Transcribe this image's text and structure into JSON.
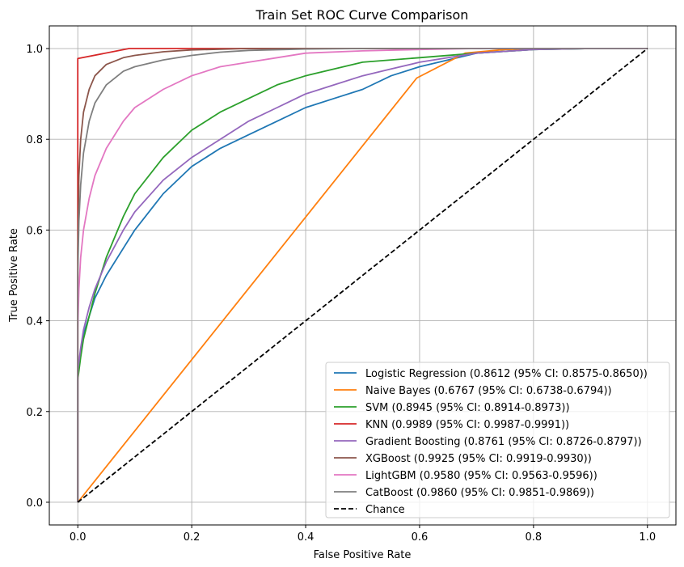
{
  "chart_data": {
    "type": "line",
    "title": "Train Set ROC Curve Comparison",
    "xlabel": "False Positive Rate",
    "ylabel": "True Positive Rate",
    "xlim": [
      -0.05,
      1.05
    ],
    "ylim": [
      -0.05,
      1.05
    ],
    "xticks": [
      0.0,
      0.2,
      0.4,
      0.6,
      0.8,
      1.0
    ],
    "yticks": [
      0.0,
      0.2,
      0.4,
      0.6,
      0.8,
      1.0
    ],
    "xtick_labels": [
      "0.0",
      "0.2",
      "0.4",
      "0.6",
      "0.8",
      "1.0"
    ],
    "ytick_labels": [
      "0.0",
      "0.2",
      "0.4",
      "0.6",
      "0.8",
      "1.0"
    ],
    "grid": true,
    "legend_position": "lower-right",
    "series": [
      {
        "name": "Logistic Regression (0.8612 (95% CI: 0.8575-0.8650))",
        "color": "#1f77b4",
        "style": "solid",
        "x": [
          0,
          0,
          0.005,
          0.01,
          0.02,
          0.03,
          0.05,
          0.08,
          0.1,
          0.15,
          0.2,
          0.25,
          0.3,
          0.35,
          0.4,
          0.45,
          0.5,
          0.55,
          0.6,
          0.65,
          0.7,
          0.8,
          0.9,
          1.0
        ],
        "y": [
          0,
          0.28,
          0.33,
          0.37,
          0.41,
          0.45,
          0.5,
          0.56,
          0.6,
          0.68,
          0.74,
          0.78,
          0.81,
          0.84,
          0.87,
          0.89,
          0.91,
          0.94,
          0.96,
          0.975,
          0.99,
          0.998,
          1.0,
          1.0
        ]
      },
      {
        "name": "Naive Bayes (0.6767 (95% CI: 0.6738-0.6794))",
        "color": "#ff7f0e",
        "style": "solid",
        "x": [
          0,
          0.595,
          0.68,
          0.75,
          0.85,
          1.0
        ],
        "y": [
          0,
          0.935,
          0.99,
          0.998,
          1.0,
          1.0
        ]
      },
      {
        "name": "SVM (0.8945 (95% CI: 0.8914-0.8973))",
        "color": "#2ca02c",
        "style": "solid",
        "x": [
          0,
          0,
          0.005,
          0.01,
          0.02,
          0.03,
          0.05,
          0.08,
          0.1,
          0.15,
          0.2,
          0.25,
          0.3,
          0.35,
          0.4,
          0.45,
          0.5,
          0.6,
          0.7,
          0.8,
          0.9,
          1.0
        ],
        "y": [
          0,
          0.27,
          0.32,
          0.36,
          0.41,
          0.46,
          0.54,
          0.63,
          0.68,
          0.76,
          0.82,
          0.86,
          0.89,
          0.92,
          0.94,
          0.955,
          0.97,
          0.98,
          0.99,
          0.998,
          1.0,
          1.0
        ]
      },
      {
        "name": "KNN (0.9989 (95% CI: 0.9987-0.9991))",
        "color": "#d62728",
        "style": "solid",
        "x": [
          0,
          0,
          0.09,
          0.2,
          1.0
        ],
        "y": [
          0,
          0.978,
          1.0,
          1.0,
          1.0
        ]
      },
      {
        "name": "Gradient Boosting (0.8761 (95% CI: 0.8726-0.8797))",
        "color": "#9467bd",
        "style": "solid",
        "x": [
          0,
          0,
          0.005,
          0.01,
          0.02,
          0.03,
          0.05,
          0.08,
          0.1,
          0.15,
          0.2,
          0.25,
          0.3,
          0.35,
          0.4,
          0.45,
          0.5,
          0.55,
          0.6,
          0.7,
          0.8,
          0.9,
          1.0
        ],
        "y": [
          0,
          0.29,
          0.34,
          0.38,
          0.43,
          0.47,
          0.53,
          0.6,
          0.64,
          0.71,
          0.76,
          0.8,
          0.84,
          0.87,
          0.9,
          0.92,
          0.94,
          0.955,
          0.97,
          0.99,
          0.998,
          1.0,
          1.0
        ]
      },
      {
        "name": "XGBoost (0.9925 (95% CI: 0.9919-0.9930))",
        "color": "#8c564b",
        "style": "solid",
        "x": [
          0,
          0,
          0.002,
          0.005,
          0.01,
          0.02,
          0.03,
          0.05,
          0.08,
          0.1,
          0.15,
          0.2,
          0.3,
          0.5,
          1.0
        ],
        "y": [
          0,
          0.55,
          0.72,
          0.8,
          0.86,
          0.91,
          0.94,
          0.965,
          0.98,
          0.985,
          0.993,
          0.997,
          1.0,
          1.0,
          1.0
        ]
      },
      {
        "name": "LightGBM (0.9580 (95% CI: 0.9563-0.9596))",
        "color": "#e377c2",
        "style": "solid",
        "x": [
          0,
          0,
          0.002,
          0.005,
          0.01,
          0.02,
          0.03,
          0.05,
          0.08,
          0.1,
          0.15,
          0.2,
          0.25,
          0.3,
          0.35,
          0.4,
          0.5,
          0.6,
          0.7,
          0.8,
          1.0
        ],
        "y": [
          0,
          0.38,
          0.47,
          0.54,
          0.6,
          0.67,
          0.72,
          0.78,
          0.84,
          0.87,
          0.91,
          0.94,
          0.96,
          0.97,
          0.98,
          0.99,
          0.995,
          0.998,
          1.0,
          1.0,
          1.0
        ]
      },
      {
        "name": "CatBoost (0.9860 (95% CI: 0.9851-0.9869))",
        "color": "#7f7f7f",
        "style": "solid",
        "x": [
          0,
          0,
          0.002,
          0.005,
          0.01,
          0.02,
          0.03,
          0.05,
          0.08,
          0.1,
          0.15,
          0.2,
          0.25,
          0.3,
          0.4,
          0.5,
          1.0
        ],
        "y": [
          0,
          0.5,
          0.62,
          0.7,
          0.77,
          0.84,
          0.88,
          0.92,
          0.95,
          0.96,
          0.975,
          0.985,
          0.992,
          0.996,
          0.999,
          1.0,
          1.0
        ]
      },
      {
        "name": "Chance",
        "color": "#000000",
        "style": "dashed",
        "x": [
          0,
          1
        ],
        "y": [
          0,
          1
        ]
      }
    ]
  }
}
